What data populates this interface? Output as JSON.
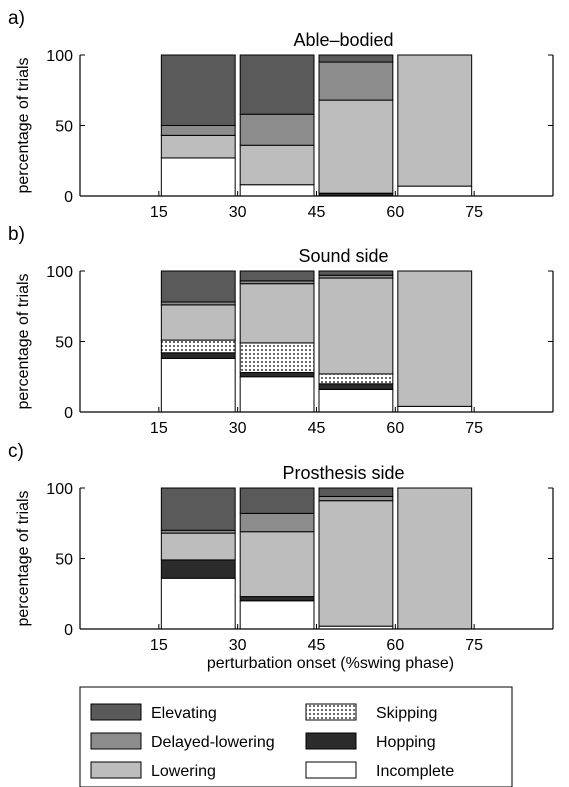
{
  "chart_data": [
    {
      "type": "bar",
      "stacked": true,
      "panel_label": "a)",
      "title": "Able–bodied",
      "xlabel": "",
      "ylabel": "percentage of trials",
      "ylim": [
        0,
        100
      ],
      "xlim": [
        0,
        90
      ],
      "yticks": [
        0,
        50,
        100
      ],
      "xticks": [
        15,
        30,
        45,
        60,
        75
      ],
      "bins": [
        {
          "x_start": 15,
          "x_end": 30,
          "segments": {
            "Incomplete": 27,
            "Hopping": 0,
            "Skipping": 0,
            "Lowering": 16,
            "Delayed-lowering": 7,
            "Elevating": 50
          }
        },
        {
          "x_start": 30,
          "x_end": 45,
          "segments": {
            "Incomplete": 8,
            "Hopping": 0,
            "Skipping": 0,
            "Lowering": 28,
            "Delayed-lowering": 22,
            "Elevating": 42
          }
        },
        {
          "x_start": 45,
          "x_end": 60,
          "segments": {
            "Incomplete": 0,
            "Hopping": 2,
            "Skipping": 0,
            "Lowering": 66,
            "Delayed-lowering": 27,
            "Elevating": 5
          }
        },
        {
          "x_start": 60,
          "x_end": 75,
          "segments": {
            "Incomplete": 7,
            "Hopping": 0,
            "Skipping": 0,
            "Lowering": 93,
            "Delayed-lowering": 0,
            "Elevating": 0
          }
        }
      ]
    },
    {
      "type": "bar",
      "stacked": true,
      "panel_label": "b)",
      "title": "Sound side",
      "xlabel": "",
      "ylabel": "percentage of trials",
      "ylim": [
        0,
        100
      ],
      "xlim": [
        0,
        90
      ],
      "yticks": [
        0,
        50,
        100
      ],
      "xticks": [
        15,
        30,
        45,
        60,
        75
      ],
      "bins": [
        {
          "x_start": 15,
          "x_end": 30,
          "segments": {
            "Incomplete": 38,
            "Hopping": 4,
            "Skipping": 9,
            "Lowering": 25,
            "Delayed-lowering": 2,
            "Elevating": 22
          }
        },
        {
          "x_start": 30,
          "x_end": 45,
          "segments": {
            "Incomplete": 25,
            "Hopping": 3,
            "Skipping": 21,
            "Lowering": 42,
            "Delayed-lowering": 2,
            "Elevating": 7
          }
        },
        {
          "x_start": 45,
          "x_end": 60,
          "segments": {
            "Incomplete": 16,
            "Hopping": 4,
            "Skipping": 7,
            "Lowering": 68,
            "Delayed-lowering": 2,
            "Elevating": 3
          }
        },
        {
          "x_start": 60,
          "x_end": 75,
          "segments": {
            "Incomplete": 4,
            "Hopping": 0,
            "Skipping": 0,
            "Lowering": 96,
            "Delayed-lowering": 0,
            "Elevating": 0
          }
        }
      ]
    },
    {
      "type": "bar",
      "stacked": true,
      "panel_label": "c)",
      "title": "Prosthesis side",
      "xlabel": "perturbation onset (%swing phase)",
      "ylabel": "percentage of trials",
      "ylim": [
        0,
        100
      ],
      "xlim": [
        0,
        90
      ],
      "yticks": [
        0,
        50,
        100
      ],
      "xticks": [
        15,
        30,
        45,
        60,
        75
      ],
      "bins": [
        {
          "x_start": 15,
          "x_end": 30,
          "segments": {
            "Incomplete": 36,
            "Hopping": 13,
            "Skipping": 0,
            "Lowering": 19,
            "Delayed-lowering": 2,
            "Elevating": 30
          }
        },
        {
          "x_start": 30,
          "x_end": 45,
          "segments": {
            "Incomplete": 20,
            "Hopping": 3,
            "Skipping": 0,
            "Lowering": 46,
            "Delayed-lowering": 13,
            "Elevating": 18
          }
        },
        {
          "x_start": 45,
          "x_end": 60,
          "segments": {
            "Incomplete": 2,
            "Hopping": 0,
            "Skipping": 0,
            "Lowering": 89,
            "Delayed-lowering": 3,
            "Elevating": 6
          }
        },
        {
          "x_start": 60,
          "x_end": 75,
          "segments": {
            "Incomplete": 0,
            "Hopping": 0,
            "Skipping": 0,
            "Lowering": 100,
            "Delayed-lowering": 0,
            "Elevating": 0
          }
        }
      ]
    }
  ],
  "legend": {
    "placement": "bottom",
    "entries": [
      {
        "key": "Elevating",
        "label": "Elevating",
        "color": "#5a5a5a",
        "pattern": "solid"
      },
      {
        "key": "Skipping",
        "label": "Skipping",
        "color": "#ffffff",
        "pattern": "dots"
      },
      {
        "key": "Delayed-lowering",
        "label": "Delayed-lowering",
        "color": "#8c8c8c",
        "pattern": "solid"
      },
      {
        "key": "Hopping",
        "label": "Hopping",
        "color": "#2b2b2b",
        "pattern": "solid"
      },
      {
        "key": "Lowering",
        "label": "Lowering",
        "color": "#bdbdbd",
        "pattern": "solid"
      },
      {
        "key": "Incomplete",
        "label": "Incomplete",
        "color": "#ffffff",
        "pattern": "solid"
      }
    ]
  },
  "stack_order": [
    "Incomplete",
    "Hopping",
    "Skipping",
    "Lowering",
    "Delayed-lowering",
    "Elevating"
  ]
}
